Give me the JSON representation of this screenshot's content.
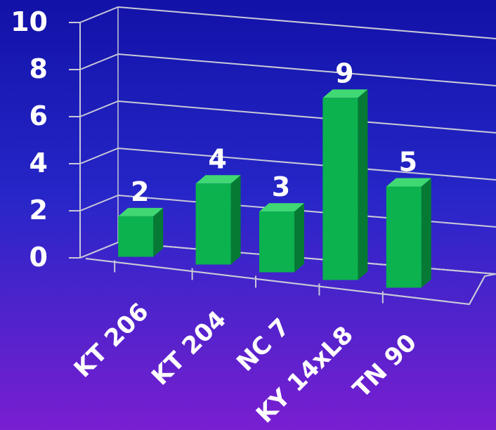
{
  "chart_data": {
    "type": "bar",
    "title": "",
    "xlabel": "",
    "ylabel": "",
    "categories": [
      "KT 206",
      "KT 204",
      "NC 7",
      "KY 14xL8",
      "TN 90"
    ],
    "values": [
      2,
      4,
      3,
      9,
      5
    ],
    "data_labels": [
      "2",
      "4",
      "3",
      "9",
      "5"
    ],
    "y_ticks": [
      "0",
      "2",
      "4",
      "6",
      "8",
      "10"
    ],
    "ylim": [
      0,
      10
    ],
    "grid": true,
    "legend": "none",
    "style": "3d",
    "colors": {
      "bar_front": "#0cb24e",
      "bar_side": "#067a34",
      "bar_top": "#3fd872",
      "grid": "#c8c8d8",
      "text": "#ffffff"
    }
  }
}
